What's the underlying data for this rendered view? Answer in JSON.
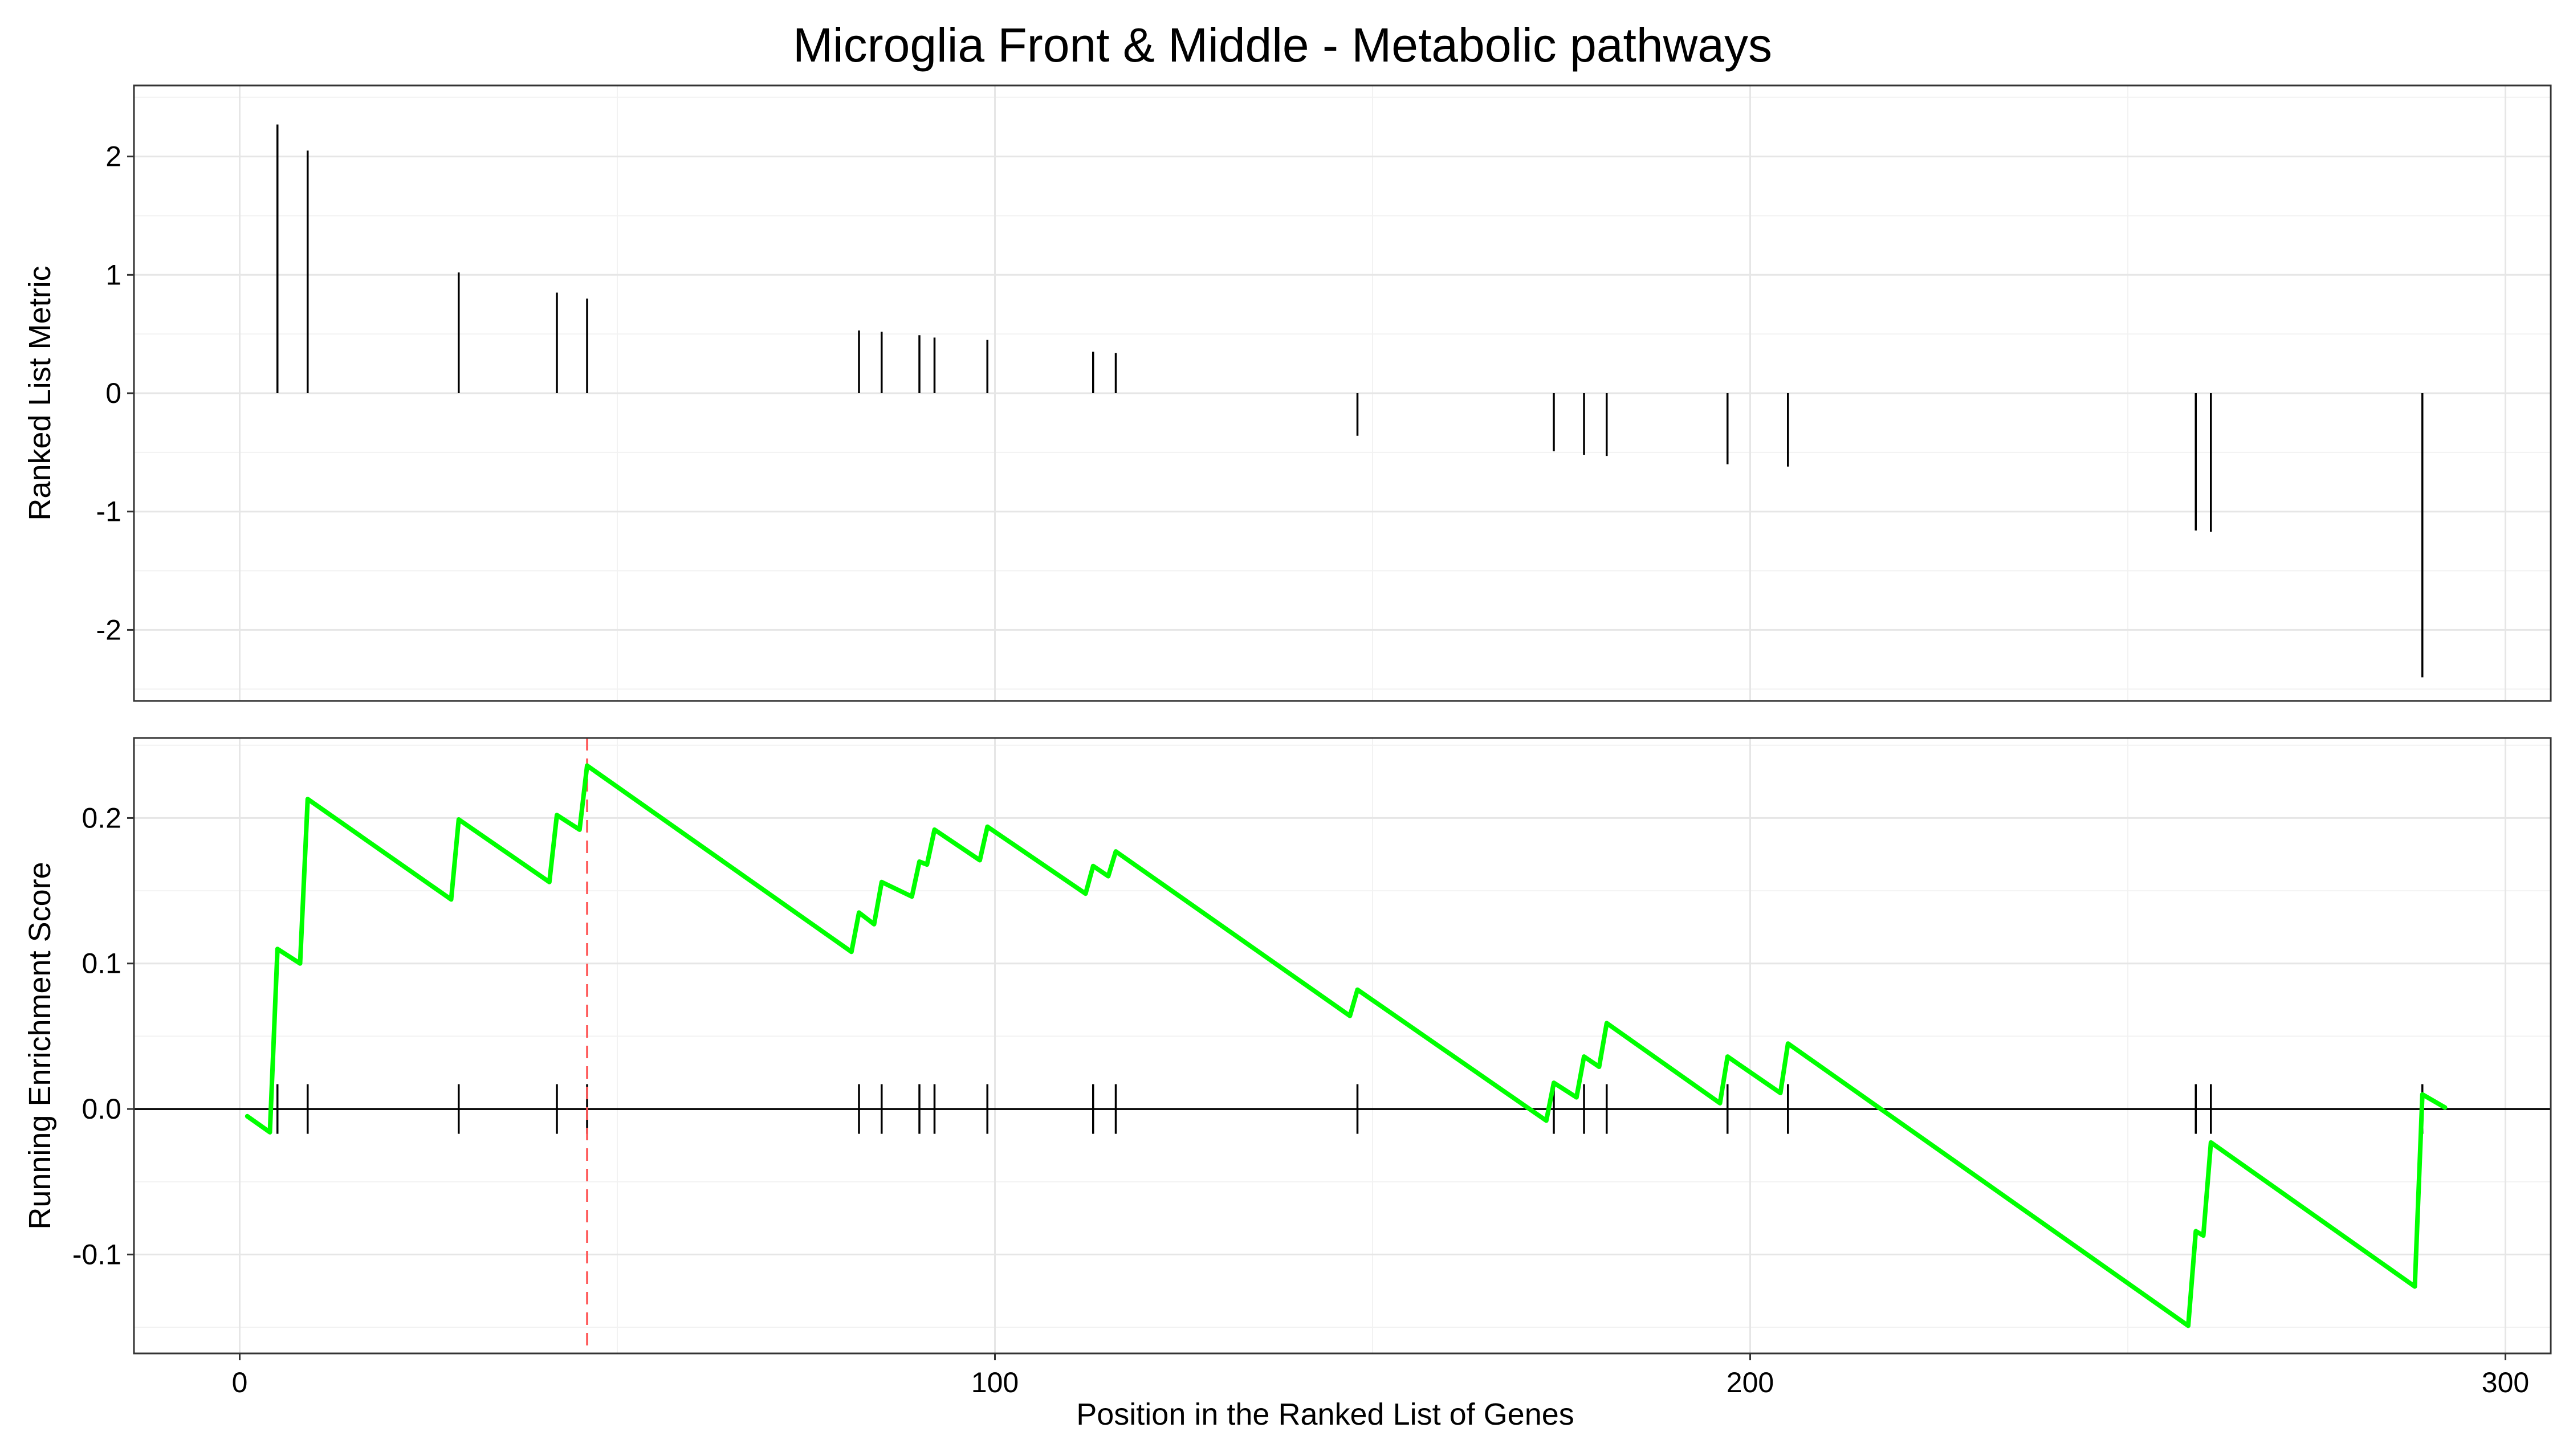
{
  "chart_data": {
    "type": "line",
    "title": "Microglia Front & Middle - Metabolic pathways",
    "xlabel": "Position in the Ranked List of Genes",
    "x_ticks": [
      0,
      100,
      200,
      300
    ],
    "xlim": [
      -14,
      306
    ],
    "grid": true,
    "panels": [
      {
        "id": "ranked-list",
        "type": "bar",
        "ylabel": "Ranked List Metric",
        "ylim": [
          -2.6,
          2.6
        ],
        "y_ticks": [
          -2,
          -1,
          0,
          1,
          2
        ],
        "hits": [
          {
            "x": 5,
            "y": 2.27
          },
          {
            "x": 9,
            "y": 2.05
          },
          {
            "x": 29,
            "y": 1.02
          },
          {
            "x": 42,
            "y": 0.85
          },
          {
            "x": 46,
            "y": 0.8
          },
          {
            "x": 82,
            "y": 0.53
          },
          {
            "x": 85,
            "y": 0.52
          },
          {
            "x": 90,
            "y": 0.49
          },
          {
            "x": 92,
            "y": 0.47
          },
          {
            "x": 99,
            "y": 0.45
          },
          {
            "x": 113,
            "y": 0.35
          },
          {
            "x": 116,
            "y": 0.34
          },
          {
            "x": 148,
            "y": -0.36
          },
          {
            "x": 174,
            "y": -0.49
          },
          {
            "x": 178,
            "y": -0.52
          },
          {
            "x": 181,
            "y": -0.53
          },
          {
            "x": 197,
            "y": -0.6
          },
          {
            "x": 205,
            "y": -0.62
          },
          {
            "x": 259,
            "y": -1.16
          },
          {
            "x": 261,
            "y": -1.17
          },
          {
            "x": 289,
            "y": -2.4
          }
        ]
      },
      {
        "id": "running-es",
        "type": "line",
        "ylabel": "Running Enrichment Score",
        "ylim": [
          -0.168,
          0.255
        ],
        "y_ticks": [
          -0.1,
          0.0,
          0.1,
          0.2
        ],
        "line_color": "#00ff00",
        "max_es_x": 46,
        "max_es_color": "#ff5555",
        "hit_positions": [
          5,
          9,
          29,
          42,
          46,
          82,
          85,
          90,
          92,
          99,
          113,
          116,
          148,
          174,
          178,
          181,
          197,
          205,
          259,
          261,
          289
        ],
        "series": [
          {
            "x": [
              1,
              4,
              5,
              8,
              9,
              28,
              29,
              41,
              42,
              45,
              46,
              81,
              82,
              84,
              85,
              89,
              90,
              91,
              92,
              98,
              99,
              112,
              113,
              115,
              116,
              147,
              148,
              173,
              174,
              177,
              178,
              180,
              181,
              196,
              197,
              204,
              205,
              258,
              259,
              260,
              261,
              288,
              289,
              292
            ],
            "y": [
              -0.005,
              -0.016,
              0.11,
              0.1,
              0.213,
              0.144,
              0.199,
              0.156,
              0.202,
              0.192,
              0.236,
              0.108,
              0.135,
              0.127,
              0.156,
              0.146,
              0.17,
              0.168,
              0.192,
              0.171,
              0.194,
              0.148,
              0.167,
              0.16,
              0.177,
              0.064,
              0.082,
              -0.008,
              0.018,
              0.008,
              0.036,
              0.029,
              0.059,
              0.004,
              0.036,
              0.011,
              0.045,
              -0.149,
              -0.084,
              -0.087,
              -0.023,
              -0.122,
              0.01,
              0.001
            ]
          }
        ]
      }
    ]
  }
}
